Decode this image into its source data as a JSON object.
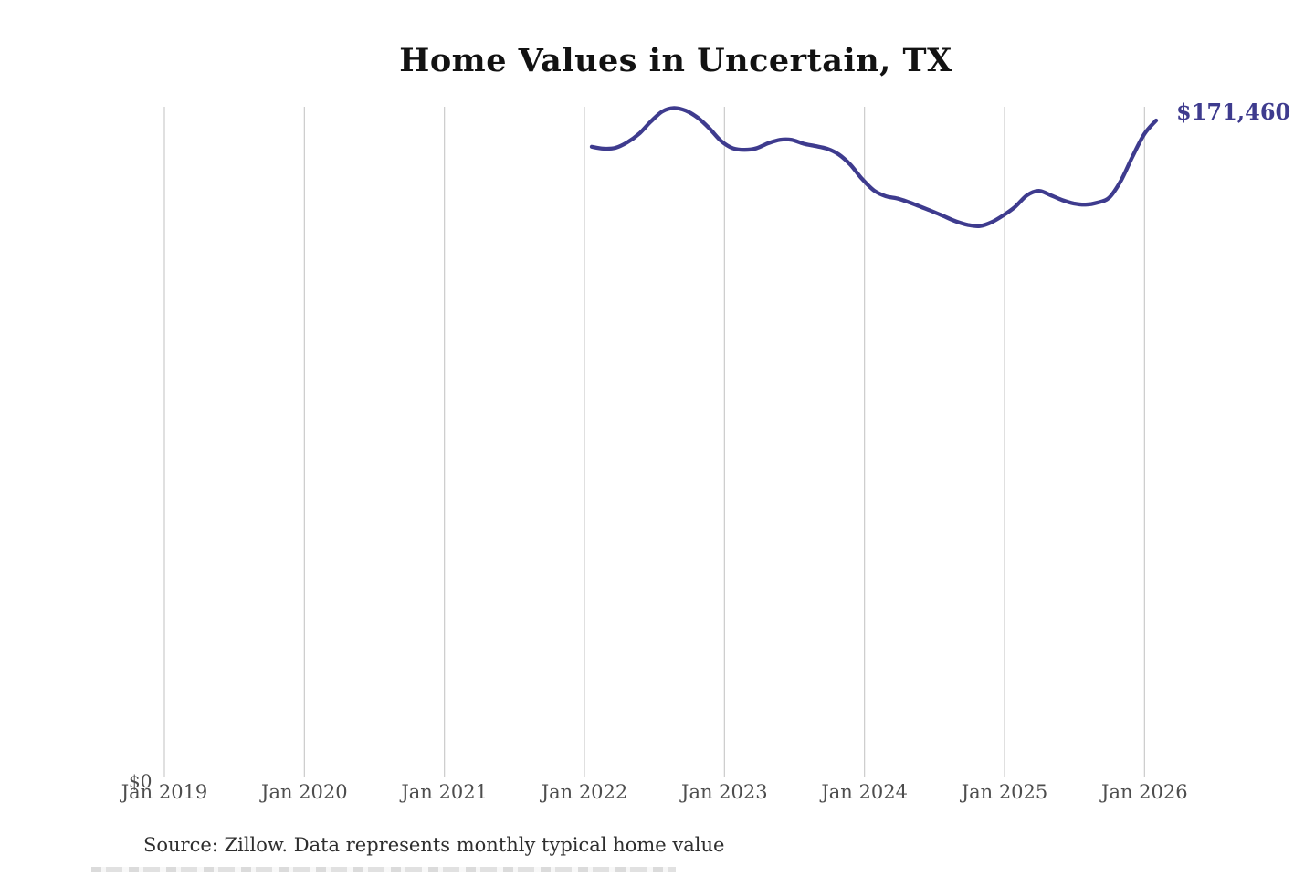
{
  "page": {
    "background": "#ffffff"
  },
  "header": {
    "title": "Home Values in Uncertain, TX"
  },
  "annotations": {
    "latest_value_label": "$171,460",
    "y_zero_label": "$0",
    "source_note": "Source: Zillow. Data represents monthly typical home value"
  },
  "colors": {
    "line": "#3e3b8e",
    "end_label": "#3e3b8e",
    "grid": "#cbcbcb",
    "axis_text": "#4d4d4d",
    "title_text": "#121212"
  },
  "chart_data": {
    "type": "line",
    "title": "Home Values in Uncertain, TX",
    "series_name": "Monthly typical home value",
    "unit": "USD",
    "x_tick_labels": [
      "Jan 2019",
      "Jan 2020",
      "Jan 2021",
      "Jan 2022",
      "Jan 2023",
      "Jan 2024",
      "Jan 2025",
      "Jan 2026"
    ],
    "x_axis_range": [
      "Jan 2019",
      "Feb 2026"
    ],
    "ylim": [
      0,
      175000
    ],
    "grid": "vertical-only",
    "legend": "none",
    "end_annotation": "$171,460",
    "x": [
      "2022-01",
      "2022-02",
      "2022-03",
      "2022-04",
      "2022-05",
      "2022-06",
      "2022-07",
      "2022-08",
      "2022-09",
      "2022-10",
      "2022-11",
      "2022-12",
      "2023-01",
      "2023-02",
      "2023-03",
      "2023-04",
      "2023-05",
      "2023-06",
      "2023-07",
      "2023-08",
      "2023-09",
      "2023-10",
      "2023-11",
      "2023-12",
      "2024-01",
      "2024-02",
      "2024-03",
      "2024-04",
      "2024-05",
      "2024-06",
      "2024-07",
      "2024-08",
      "2024-09",
      "2024-10",
      "2024-11",
      "2024-12",
      "2025-01",
      "2025-02",
      "2025-03",
      "2025-04",
      "2025-05",
      "2025-06",
      "2025-07",
      "2025-08",
      "2025-09",
      "2025-10",
      "2025-11",
      "2025-12",
      "2026-01"
    ],
    "values": [
      164600,
      164100,
      164300,
      165700,
      167900,
      171100,
      173800,
      174700,
      174000,
      172200,
      169400,
      166100,
      164200,
      163800,
      164200,
      165500,
      166400,
      166400,
      165400,
      164800,
      164100,
      162600,
      159900,
      156200,
      153200,
      151700,
      151100,
      150100,
      148900,
      147700,
      146400,
      145100,
      144200,
      143900,
      144900,
      146700,
      148900,
      151900,
      153100,
      152000,
      150700,
      149800,
      149500,
      150000,
      151300,
      155700,
      162100,
      167900,
      171460
    ]
  }
}
